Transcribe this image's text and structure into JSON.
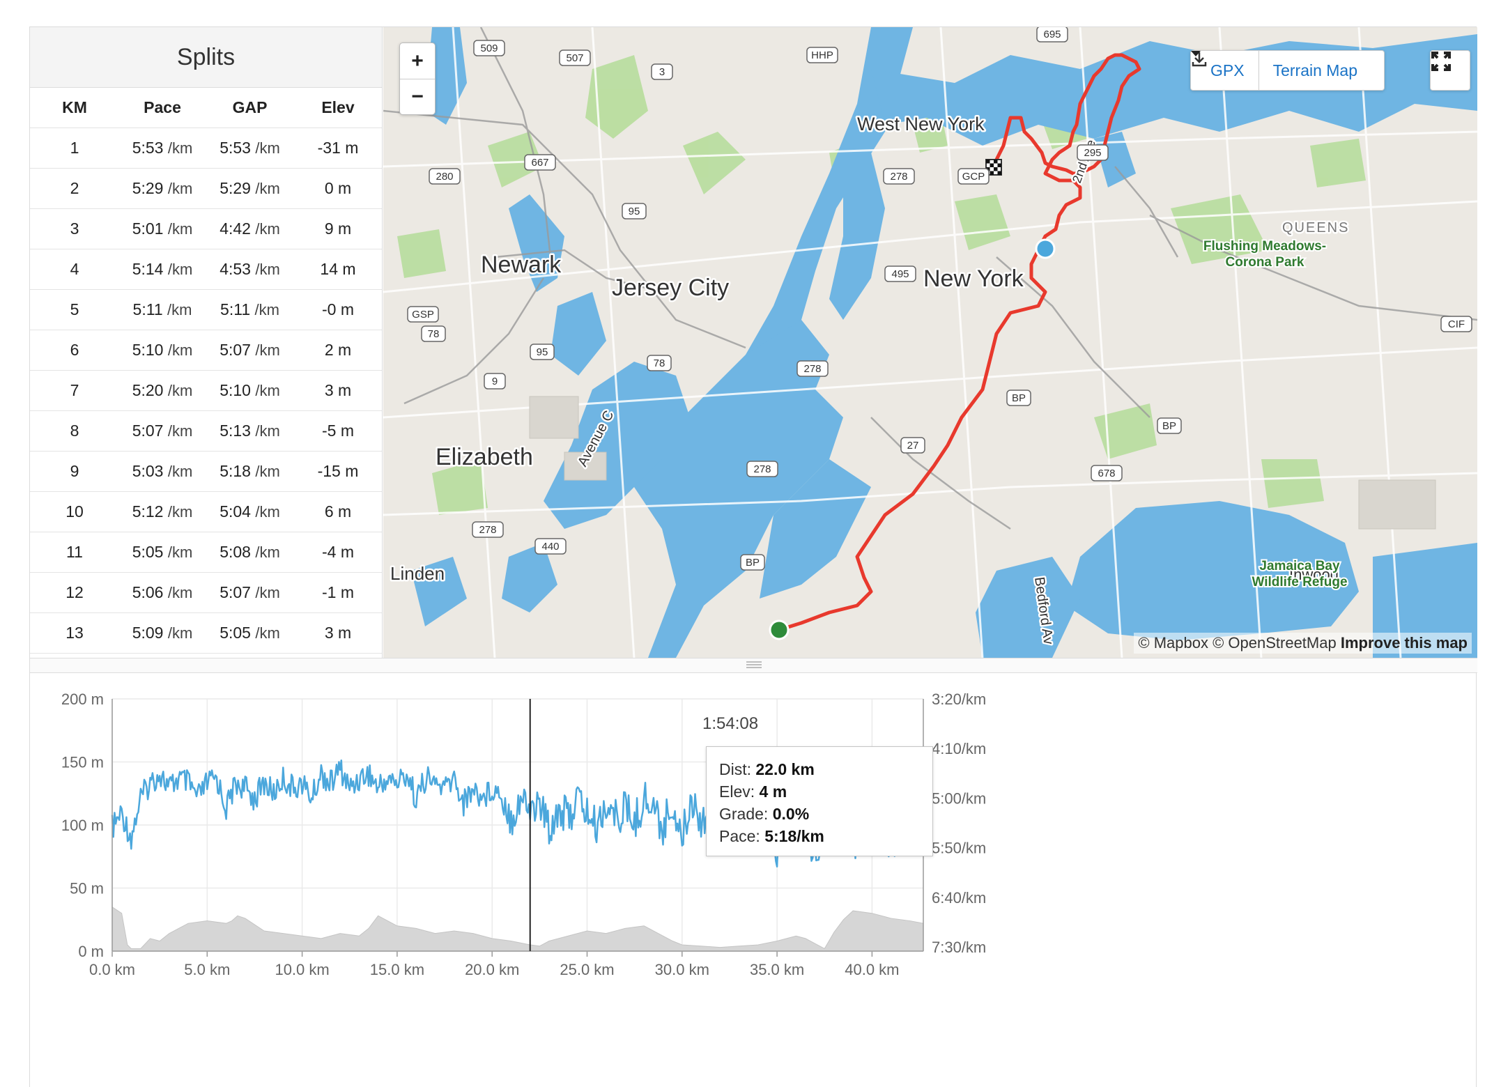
{
  "splits": {
    "title": "Splits",
    "columns": [
      "KM",
      "Pace",
      "GAP",
      "Elev"
    ],
    "rows": [
      {
        "km": "1",
        "pace": "5:53",
        "gap": "5:53",
        "elev": "-31 m"
      },
      {
        "km": "2",
        "pace": "5:29",
        "gap": "5:29",
        "elev": "0 m"
      },
      {
        "km": "3",
        "pace": "5:01",
        "gap": "4:42",
        "elev": "9 m"
      },
      {
        "km": "4",
        "pace": "5:14",
        "gap": "4:53",
        "elev": "14 m"
      },
      {
        "km": "5",
        "pace": "5:11",
        "gap": "5:11",
        "elev": "-0 m"
      },
      {
        "km": "6",
        "pace": "5:10",
        "gap": "5:07",
        "elev": "2 m"
      },
      {
        "km": "7",
        "pace": "5:20",
        "gap": "5:10",
        "elev": "3 m"
      },
      {
        "km": "8",
        "pace": "5:07",
        "gap": "5:13",
        "elev": "-5 m"
      },
      {
        "km": "9",
        "pace": "5:03",
        "gap": "5:18",
        "elev": "-15 m"
      },
      {
        "km": "10",
        "pace": "5:12",
        "gap": "5:04",
        "elev": "6 m"
      },
      {
        "km": "11",
        "pace": "5:05",
        "gap": "5:08",
        "elev": "-4 m"
      },
      {
        "km": "12",
        "pace": "5:06",
        "gap": "5:07",
        "elev": "-1 m"
      },
      {
        "km": "13",
        "pace": "5:09",
        "gap": "5:05",
        "elev": "3 m"
      }
    ],
    "pace_unit": "/km"
  },
  "map": {
    "zoom_in": "+",
    "zoom_out": "−",
    "gpx_label": "GPX",
    "map_type_label": "Terrain Map",
    "attribution_prefix": "© Mapbox © OpenStreetMap",
    "attribution_link": "Improve this map",
    "place_labels": {
      "west_new_york": "West New York",
      "newark": "Newark",
      "jersey_city": "Jersey City",
      "new_york": "New York",
      "elizabeth": "Elizabeth",
      "linden": "Linden",
      "queens": "QUEENS",
      "flushing": "Flushing Meadows-",
      "corona": "Corona Park",
      "jamaica": "Jamaica Bay",
      "wildlife": "Wildlife Refuge",
      "inwood": "Inwood",
      "avenue_c": "Avenue C",
      "bedford": "Bedford Av",
      "second_ave": "2nd Ave"
    },
    "road_shields": [
      "509",
      "507",
      "3",
      "HHP",
      "695",
      "280",
      "667",
      "95",
      "278",
      "GCP",
      "295",
      "495",
      "GSP",
      "78",
      "9",
      "95",
      "78",
      "278",
      "BP",
      "27",
      "678",
      "BP",
      "278",
      "278",
      "440",
      "BP",
      "CIF"
    ],
    "colors": {
      "route": "#e8392d",
      "water": "#6fb5e3",
      "land": "#ece9e3",
      "park": "#b7dd9c"
    }
  },
  "chart": {
    "hover_time": "1:54:08",
    "tooltip": {
      "dist_label": "Dist:",
      "dist_value": "22.0 km",
      "elev_label": "Elev:",
      "elev_value": "4 m",
      "grade_label": "Grade:",
      "grade_value": "0.0%",
      "pace_label": "Pace:",
      "pace_value": "5:18/km"
    },
    "colors": {
      "pace_line": "#4ba7dc",
      "elevation_fill": "#d6d6d6",
      "cursor": "#222222"
    }
  },
  "chart_data": {
    "type": "line",
    "x_label": "",
    "x_ticks": [
      "0.0 km",
      "5.0 km",
      "10.0 km",
      "15.0 km",
      "20.0 km",
      "25.0 km",
      "30.0 km",
      "35.0 km",
      "40.0 km"
    ],
    "xlim": [
      0,
      42.7
    ],
    "y_left_ticks": [
      "200 m",
      "150 m",
      "100 m",
      "50 m",
      "0 m"
    ],
    "y_left_lim": [
      0,
      200
    ],
    "y_right_ticks": [
      "3:20/km",
      "4:10/km",
      "5:00/km",
      "5:50/km",
      "6:40/km",
      "7:30/km"
    ],
    "series": [
      {
        "name": "Elevation",
        "x": [
          0,
          0.5,
          0.8,
          1.0,
          1.5,
          2,
          2.5,
          3,
          4,
          5,
          6,
          6.3,
          6.6,
          7,
          8,
          9,
          10,
          11,
          12,
          13,
          13.5,
          14,
          15,
          16,
          17,
          18,
          19,
          20,
          21,
          22,
          22.5,
          23,
          24,
          25,
          26,
          27,
          28,
          29,
          29.5,
          30,
          31,
          32,
          33,
          34,
          35,
          36,
          36.5,
          37,
          37.5,
          38,
          38.5,
          39,
          40,
          41,
          42,
          42.7
        ],
        "y": [
          35,
          30,
          5,
          2,
          2,
          10,
          8,
          14,
          22,
          24,
          22,
          24,
          28,
          26,
          16,
          14,
          12,
          10,
          14,
          12,
          18,
          28,
          20,
          18,
          14,
          16,
          14,
          10,
          8,
          5,
          4,
          8,
          12,
          16,
          14,
          18,
          20,
          12,
          8,
          5,
          4,
          3,
          4,
          5,
          8,
          12,
          10,
          6,
          2,
          15,
          25,
          32,
          30,
          26,
          24,
          22
        ]
      },
      {
        "name": "Pace",
        "x": [
          0,
          0.5,
          1,
          1.5,
          2,
          2.5,
          3,
          3.5,
          4,
          4.5,
          5,
          5.5,
          6,
          6.5,
          7,
          7.5,
          8,
          8.5,
          9,
          9.5,
          10,
          10.5,
          11,
          11.5,
          12,
          12.5,
          13,
          13.5,
          14,
          14.5,
          15,
          15.5,
          16,
          16.5,
          17,
          17.5,
          18,
          18.5,
          19,
          19.5,
          20,
          20.5,
          21,
          21.5,
          22,
          22.5,
          23,
          23.5,
          24,
          24.5,
          25,
          25.5,
          26,
          26.5,
          27,
          27.5,
          28,
          28.5,
          29,
          29.5,
          30,
          30.5,
          31,
          31.5,
          32,
          32.5,
          33,
          33.5,
          34,
          34.5,
          35,
          35.5,
          36,
          36.5,
          37,
          37.5,
          38,
          38.5,
          39,
          39.5,
          40,
          40.5,
          41,
          41.5,
          42,
          42.7
        ],
        "y_pace_seconds": [
          330,
          315,
          340,
          300,
          285,
          275,
          290,
          280,
          285,
          300,
          285,
          280,
          310,
          285,
          290,
          300,
          285,
          295,
          280,
          290,
          285,
          300,
          275,
          285,
          270,
          290,
          280,
          275,
          290,
          280,
          285,
          275,
          300,
          280,
          285,
          290,
          280,
          305,
          290,
          300,
          290,
          295,
          320,
          300,
          310,
          305,
          330,
          310,
          320,
          300,
          315,
          330,
          305,
          320,
          310,
          325,
          300,
          310,
          330,
          305,
          340,
          300,
          320,
          310,
          325,
          310,
          330,
          305,
          320,
          335,
          350,
          320,
          340,
          325,
          355,
          330,
          340,
          330,
          345,
          335,
          340,
          330,
          345,
          335,
          340,
          300,
          330
        ]
      }
    ],
    "cursor_x": 22.0
  }
}
